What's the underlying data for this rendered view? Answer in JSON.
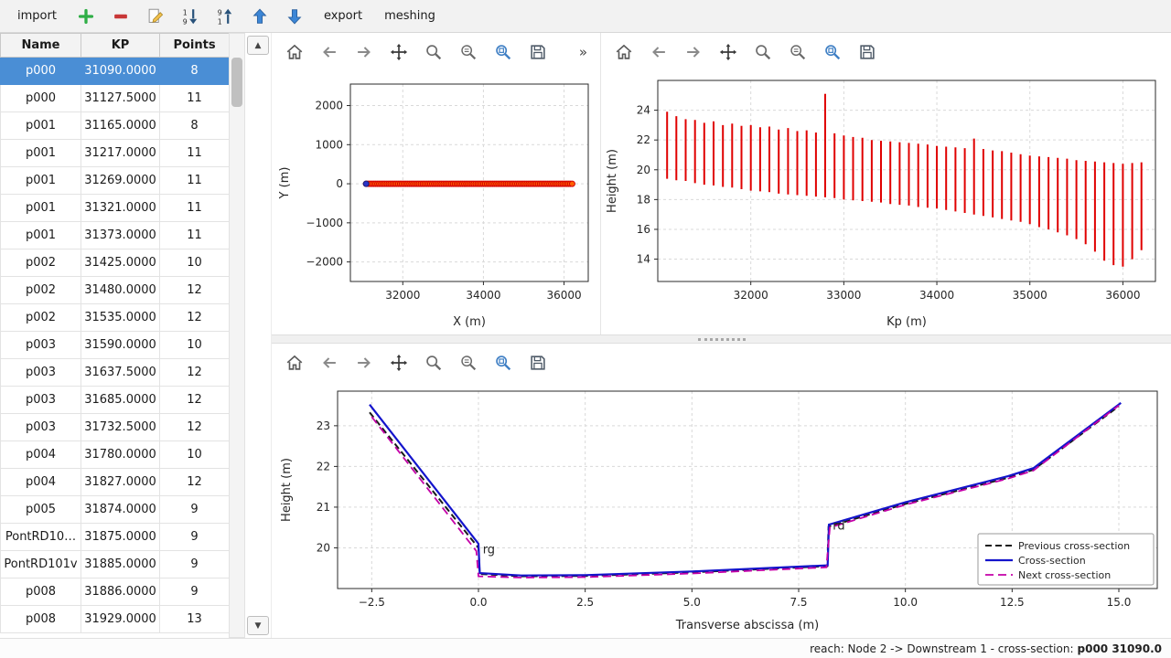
{
  "toolbar": {
    "import_label": "import",
    "export_label": "export",
    "meshing_label": "meshing",
    "icons": [
      "add",
      "remove",
      "edit",
      "sort-ascending",
      "sort-descending",
      "move-up",
      "move-down"
    ]
  },
  "plot_toolbar": {
    "icons": [
      "home",
      "back",
      "forward",
      "pan",
      "zoom",
      "subplots",
      "customize",
      "save"
    ],
    "overflow_indicator": "»"
  },
  "scrollbar": {
    "up_glyph": "▲",
    "down_glyph": "▼"
  },
  "table": {
    "columns": [
      "Name",
      "KP",
      "Points"
    ],
    "selected_index": 0,
    "rows": [
      [
        "p000",
        "31090.0000",
        "8"
      ],
      [
        "p000",
        "31127.5000",
        "11"
      ],
      [
        "p001",
        "31165.0000",
        "8"
      ],
      [
        "p001",
        "31217.0000",
        "11"
      ],
      [
        "p001",
        "31269.0000",
        "11"
      ],
      [
        "p001",
        "31321.0000",
        "11"
      ],
      [
        "p001",
        "31373.0000",
        "11"
      ],
      [
        "p002",
        "31425.0000",
        "10"
      ],
      [
        "p002",
        "31480.0000",
        "12"
      ],
      [
        "p002",
        "31535.0000",
        "12"
      ],
      [
        "p003",
        "31590.0000",
        "10"
      ],
      [
        "p003",
        "31637.5000",
        "12"
      ],
      [
        "p003",
        "31685.0000",
        "12"
      ],
      [
        "p003",
        "31732.5000",
        "12"
      ],
      [
        "p004",
        "31780.0000",
        "10"
      ],
      [
        "p004",
        "31827.0000",
        "12"
      ],
      [
        "p005",
        "31874.0000",
        "9"
      ],
      [
        "PontRD10…",
        "31875.0000",
        "9"
      ],
      [
        "PontRD101v",
        "31885.0000",
        "9"
      ],
      [
        "p008",
        "31886.0000",
        "9"
      ],
      [
        "p008",
        "31929.0000",
        "13"
      ]
    ]
  },
  "colors": {
    "selection_background": "#4a8ed5",
    "vlines_red": "#e00000",
    "cross_section_blue": "#1414cc",
    "previous_black": "#1a1a1a",
    "next_magenta": "#c400a8"
  },
  "chart_data": [
    {
      "type": "scatter",
      "xlabel": "X (m)",
      "ylabel": "Y (m)",
      "xlim": [
        30700,
        36600
      ],
      "ylim": [
        -2500,
        2550
      ],
      "xticks": [
        32000,
        34000,
        36000
      ],
      "xtick_labels": [
        "32000",
        "34000",
        "36000"
      ],
      "yticks": [
        -2000,
        -1000,
        0,
        1000,
        2000
      ],
      "ytick_labels": [
        "−2000",
        "−1000",
        "0",
        "1000",
        "2000"
      ],
      "grid": true,
      "points_spec": {
        "x_min": 31090,
        "x_max": 36200,
        "count": 110,
        "y": 0
      },
      "marker": {
        "fill": "#ff5f00",
        "edge": "#d40000",
        "radius": 3
      },
      "first_marker": {
        "fill": "#2b35c8",
        "edge": "#1a1f7a",
        "radius": 3
      },
      "path_color": "#c81400"
    },
    {
      "type": "vlines",
      "xlabel": "Kp (m)",
      "ylabel": "Height (m)",
      "xlim": [
        31000,
        36350
      ],
      "ylim": [
        12.5,
        26
      ],
      "xticks": [
        32000,
        33000,
        34000,
        35000,
        36000
      ],
      "xtick_labels": [
        "32000",
        "33000",
        "34000",
        "35000",
        "36000"
      ],
      "yticks": [
        14,
        16,
        18,
        20,
        22,
        24
      ],
      "ytick_labels": [
        "14",
        "16",
        "18",
        "20",
        "22",
        "24"
      ],
      "grid": true,
      "color": "#e00000",
      "line_width": 2,
      "segments": [
        [
          31100,
          19.4,
          23.9
        ],
        [
          31200,
          19.3,
          23.6
        ],
        [
          31300,
          19.25,
          23.4
        ],
        [
          31400,
          19.1,
          23.35
        ],
        [
          31500,
          19.0,
          23.15
        ],
        [
          31600,
          18.95,
          23.25
        ],
        [
          31700,
          18.85,
          23.0
        ],
        [
          31800,
          18.8,
          23.1
        ],
        [
          31900,
          18.7,
          22.95
        ],
        [
          32000,
          18.6,
          23.0
        ],
        [
          32100,
          18.55,
          22.85
        ],
        [
          32200,
          18.5,
          22.9
        ],
        [
          32300,
          18.4,
          22.7
        ],
        [
          32400,
          18.35,
          22.8
        ],
        [
          32500,
          18.3,
          22.6
        ],
        [
          32600,
          18.25,
          22.65
        ],
        [
          32700,
          18.2,
          22.5
        ],
        [
          32800,
          18.15,
          25.1
        ],
        [
          32900,
          18.1,
          22.45
        ],
        [
          33000,
          18.0,
          22.3
        ],
        [
          33100,
          17.95,
          22.2
        ],
        [
          33200,
          17.9,
          22.15
        ],
        [
          33300,
          17.85,
          22.0
        ],
        [
          33400,
          17.8,
          21.95
        ],
        [
          33500,
          17.7,
          21.9
        ],
        [
          33600,
          17.65,
          21.85
        ],
        [
          33700,
          17.6,
          21.8
        ],
        [
          33800,
          17.5,
          21.75
        ],
        [
          33900,
          17.45,
          21.7
        ],
        [
          34000,
          17.4,
          21.6
        ],
        [
          34100,
          17.3,
          21.55
        ],
        [
          34200,
          17.2,
          21.5
        ],
        [
          34300,
          17.1,
          21.45
        ],
        [
          34400,
          17.0,
          22.1
        ],
        [
          34500,
          16.9,
          21.4
        ],
        [
          34600,
          16.8,
          21.3
        ],
        [
          34700,
          16.7,
          21.25
        ],
        [
          34800,
          16.6,
          21.15
        ],
        [
          34900,
          16.5,
          21.05
        ],
        [
          35000,
          16.35,
          20.95
        ],
        [
          35100,
          16.15,
          20.9
        ],
        [
          35200,
          16.0,
          20.85
        ],
        [
          35300,
          15.8,
          20.8
        ],
        [
          35400,
          15.6,
          20.75
        ],
        [
          35500,
          15.35,
          20.65
        ],
        [
          35600,
          15.0,
          20.6
        ],
        [
          35700,
          14.5,
          20.55
        ],
        [
          35800,
          13.9,
          20.5
        ],
        [
          35900,
          13.6,
          20.45
        ],
        [
          36000,
          13.5,
          20.4
        ],
        [
          36100,
          14.0,
          20.45
        ],
        [
          36200,
          14.6,
          20.5
        ]
      ]
    },
    {
      "type": "line",
      "xlabel": "Transverse abscissa (m)",
      "ylabel": "Height (m)",
      "xlim": [
        -3.3,
        15.9
      ],
      "ylim": [
        19.0,
        23.85
      ],
      "xticks": [
        -2.5,
        0,
        2.5,
        5,
        7.5,
        10,
        12.5,
        15
      ],
      "xtick_labels": [
        "−2.5",
        "0.0",
        "2.5",
        "5.0",
        "7.5",
        "10.0",
        "12.5",
        "15.0"
      ],
      "yticks": [
        20,
        21,
        22,
        23
      ],
      "ytick_labels": [
        "20",
        "21",
        "22",
        "23"
      ],
      "grid": true,
      "legend": {
        "location": "lower right"
      },
      "series": [
        {
          "name": "Previous cross-section",
          "color": "#1a1a1a",
          "dash": "7,4",
          "width": 2,
          "points": [
            [
              -2.55,
              23.33
            ],
            [
              0,
              20.0
            ],
            [
              0.03,
              19.36
            ],
            [
              1,
              19.3
            ],
            [
              2.5,
              19.31
            ],
            [
              5,
              19.4
            ],
            [
              8.17,
              19.55
            ],
            [
              8.2,
              20.52
            ],
            [
              10,
              21.08
            ],
            [
              12.4,
              21.72
            ],
            [
              13,
              21.92
            ],
            [
              15,
              23.48
            ]
          ]
        },
        {
          "name": "Cross-section",
          "color": "#1414cc",
          "dash": null,
          "width": 2.2,
          "points": [
            [
              -2.55,
              23.52
            ],
            [
              0,
              20.1
            ],
            [
              0.03,
              19.38
            ],
            [
              1,
              19.32
            ],
            [
              2.5,
              19.33
            ],
            [
              5,
              19.42
            ],
            [
              8.18,
              19.57
            ],
            [
              8.21,
              20.57
            ],
            [
              10,
              21.12
            ],
            [
              12.4,
              21.76
            ],
            [
              13,
              21.96
            ],
            [
              15.05,
              23.56
            ]
          ]
        },
        {
          "name": "Next cross-section",
          "color": "#c400a8",
          "dash": "9,5",
          "width": 1.8,
          "points": [
            [
              -2.5,
              23.22
            ],
            [
              -0.05,
              19.92
            ],
            [
              0,
              19.3
            ],
            [
              1,
              19.27
            ],
            [
              2.5,
              19.28
            ],
            [
              5,
              19.37
            ],
            [
              8.15,
              19.52
            ],
            [
              8.23,
              20.5
            ],
            [
              10,
              21.06
            ],
            [
              12.4,
              21.7
            ],
            [
              13,
              21.9
            ],
            [
              15,
              23.5
            ]
          ]
        }
      ],
      "annotations": [
        {
          "text": "rg",
          "x": 0.1,
          "y": 19.87,
          "color": "#2bb0c8"
        },
        {
          "text": "rd",
          "x": 8.3,
          "y": 20.45,
          "color": "#141414"
        }
      ]
    }
  ],
  "status": {
    "reach_text": "reach: Node 2 -> Downstream 1 - cross-section: ",
    "cross_section_value": "p000 31090.0"
  }
}
